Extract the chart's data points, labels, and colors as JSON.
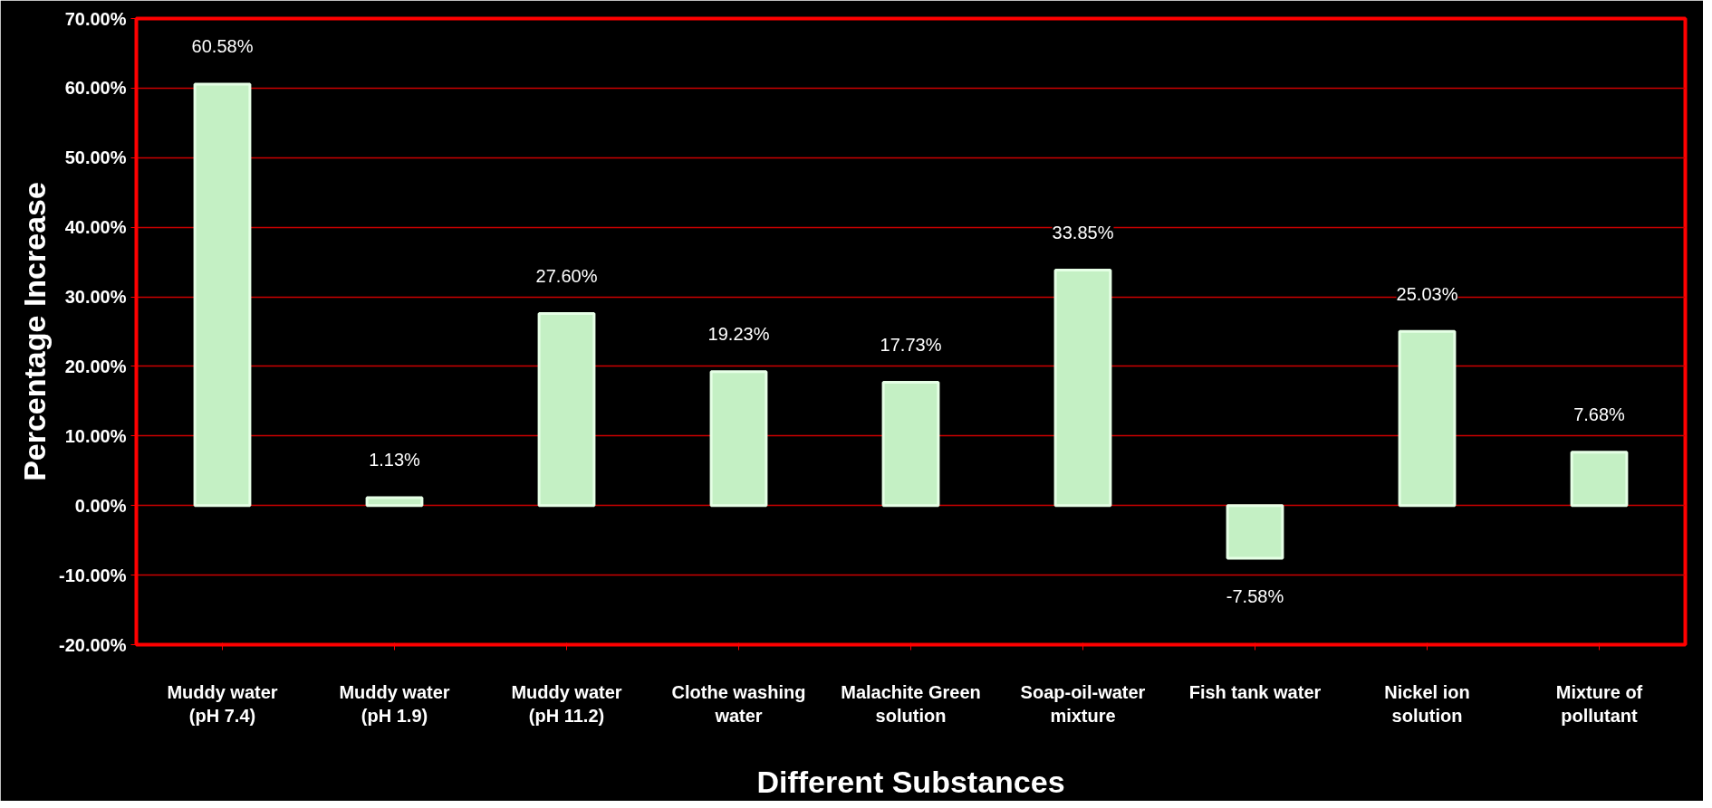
{
  "chart_data": {
    "type": "bar",
    "xlabel": "Different Substances",
    "ylabel": "Percentage Increase",
    "categories": [
      "Muddy water\n(pH 7.4)",
      "Muddy water\n(pH 1.9)",
      "Muddy water\n(pH 11.2)",
      "Clothe washing\nwater",
      "Malachite Green\nsolution",
      "Soap-oil-water\nmixture",
      "Fish tank water",
      "Nickel ion\nsolution",
      "Mixture of\npollutant"
    ],
    "values": [
      60.58,
      1.13,
      27.6,
      19.23,
      17.73,
      33.85,
      -7.58,
      25.03,
      7.68
    ],
    "value_labels": [
      "60.58%",
      "1.13%",
      "27.60%",
      "19.23%",
      "17.73%",
      "33.85%",
      "-7.58%",
      "25.03%",
      "7.68%"
    ],
    "color": "#c4f0c4",
    "ylim": [
      -20,
      70
    ],
    "yticks": [
      {
        "value": -20,
        "label": "-20.00%"
      },
      {
        "value": -10,
        "label": "-10.00%"
      },
      {
        "value": 0,
        "label": "0.00%"
      },
      {
        "value": 10,
        "label": "10.00%"
      },
      {
        "value": 20,
        "label": "20.00%"
      },
      {
        "value": 30,
        "label": "30.00%"
      },
      {
        "value": 40,
        "label": "40.00%"
      },
      {
        "value": 50,
        "label": "50.00%"
      },
      {
        "value": 60,
        "label": "60.00%"
      },
      {
        "value": 70,
        "label": "70.00%"
      }
    ],
    "grid": "y"
  }
}
